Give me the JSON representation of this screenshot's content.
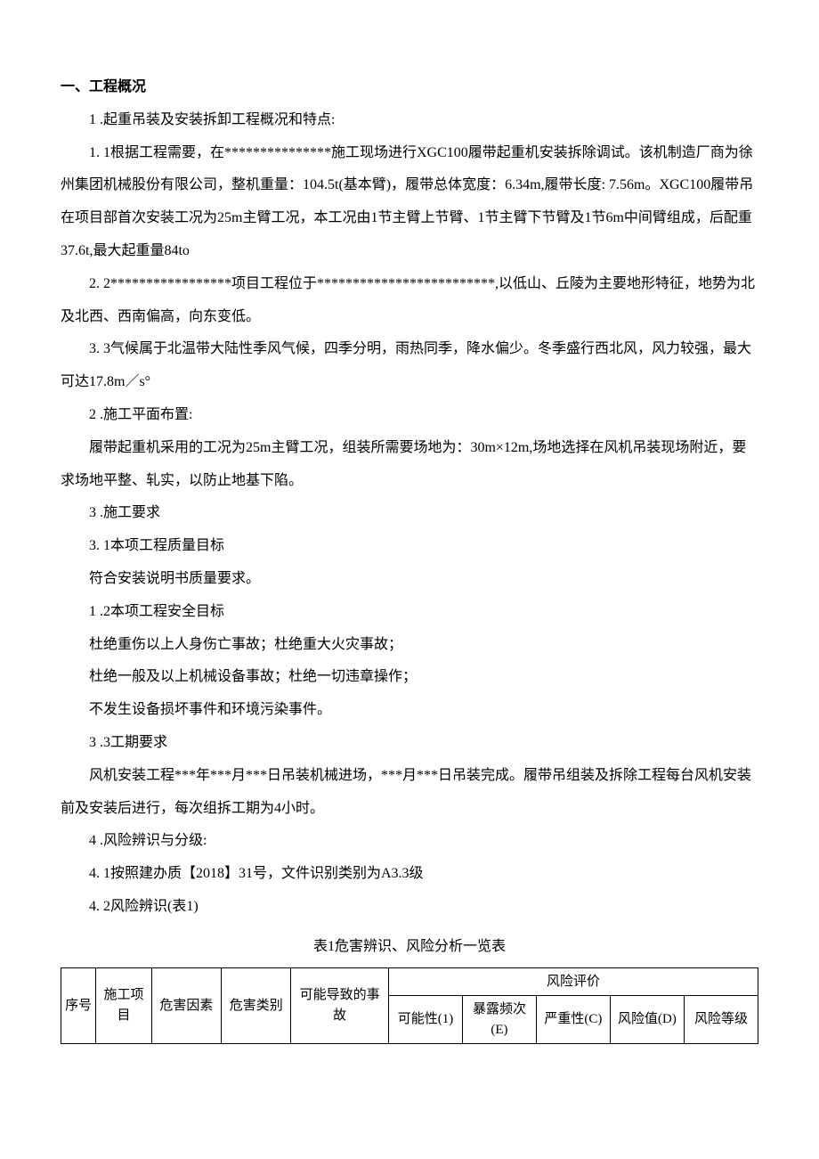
{
  "doc": {
    "h1": "一、工程概况",
    "p1": "1 .起重吊装及安装拆卸工程概况和特点:",
    "p2": "1. 1根据工程需要，在***************施工现场进行XGC100履带起重机安装拆除调试。该机制造厂商为徐州集团机械股份有限公司，整机重量：104.5t(基本臂)，履带总体宽度：6.34m,履带长度: 7.56m。XGC100履带吊在项目部首次安装工况为25m主臂工况，本工况由1节主臂上节臂、1节主臂下节臂及1节6m中间臂组成，后配重37.6t,最大起重量84to",
    "p3": "2. 2*****************项目工程位于*************************,以低山、丘陵为主要地形特征，地势为北及北西、西南偏高，向东变低。",
    "p4": "3. 3气候属于北温带大陆性季风气候，四季分明，雨热同季，降水偏少。冬季盛行西北风，风力较强，最大可达17.8m／s°",
    "p5": "2 .施工平面布置:",
    "p6": "履带起重机采用的工况为25m主臂工况，组装所需要场地为：30m×12m,场地选择在风机吊装现场附近，要求场地平整、轧实，以防止地基下陷。",
    "p7": "3 .施工要求",
    "p8": "3. 1本项工程质量目标",
    "p9": "符合安装说明书质量要求。",
    "p10": "1 .2本项工程安全目标",
    "p11": "杜绝重伤以上人身伤亡事故；杜绝重大火灾事故；",
    "p12": "杜绝一般及以上机械设备事故；杜绝一切违章操作；",
    "p13": "不发生设备损坏事件和环境污染事件。",
    "p14": "3 .3工期要求",
    "p15": "风机安装工程***年***月***日吊装机械进场，***月***日吊装完成。履带吊组装及拆除工程每台风机安装前及安装后进行，每次组拆工期为4小时。",
    "p16": "4 .风险辨识与分级:",
    "p17": "4. 1按照建办质【2018】31号，文件识别类别为A3.3级",
    "p18": "4. 2风险辨识(表1)",
    "tableCaption": "表1危害辨识、风险分析一览表"
  },
  "table": {
    "h_seq": "序号",
    "h_proj": "施工项目",
    "h_factor": "危害因素",
    "h_cat": "危害类别",
    "h_accident": "可能导致的事故",
    "h_risk": "风险评价",
    "h_l": "可能性(1)",
    "h_e": "暴露频次(E)",
    "h_c": "严重性(C)",
    "h_d": "风险值(D)",
    "h_level": "风险等级"
  }
}
